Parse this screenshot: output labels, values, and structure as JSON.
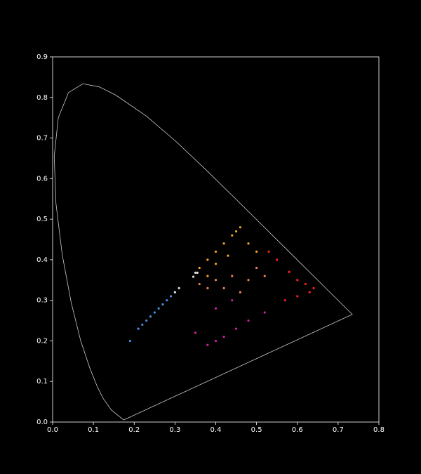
{
  "chart_data": {
    "type": "scatter",
    "xlim": [
      0,
      0.8
    ],
    "ylim": [
      0,
      0.9
    ],
    "xticks": [
      {
        "value": 0,
        "label": "0.0"
      },
      0.1,
      0.2,
      0.3,
      0.4,
      0.5,
      0.6,
      0.7,
      0.8
    ],
    "yticks": [
      {
        "value": 0,
        "label": "0.0"
      },
      0.1,
      0.2,
      0.3,
      0.4,
      0.5,
      0.6,
      0.7,
      0.8,
      0.9
    ],
    "grid": false,
    "series": [
      {
        "type": "line",
        "color": "#cccccc",
        "x": [
          0.1741,
          0.144,
          0.1241,
          0.1096,
          0.0913,
          0.0687,
          0.0454,
          0.0235,
          0.0082,
          0.0039,
          0.0139,
          0.0389,
          0.0743,
          0.1142,
          0.1547,
          0.2296,
          0.3016,
          0.3731,
          0.4441,
          0.5125,
          0.5752,
          0.627,
          0.6915,
          0.7347,
          0.1741
        ],
        "values": [
          0.005,
          0.0297,
          0.0578,
          0.0868,
          0.1327,
          0.2007,
          0.295,
          0.4127,
          0.5384,
          0.6548,
          0.7502,
          0.812,
          0.8338,
          0.8262,
          0.8059,
          0.7543,
          0.6923,
          0.6245,
          0.5547,
          0.4866,
          0.4242,
          0.3725,
          0.3083,
          0.2653,
          0.005
        ]
      },
      {
        "type": "scatter",
        "color": "#4a90d9",
        "x": [
          0.19,
          0.21,
          0.22,
          0.24,
          0.25,
          0.27,
          0.28,
          0.29,
          0.3,
          0.23,
          0.26
        ],
        "values": [
          0.2,
          0.23,
          0.24,
          0.26,
          0.27,
          0.29,
          0.3,
          0.31,
          0.32,
          0.25,
          0.28
        ]
      },
      {
        "type": "scatter",
        "color": "#f5a623",
        "x": [
          0.36,
          0.38,
          0.4,
          0.42,
          0.44,
          0.45,
          0.46,
          0.4,
          0.43,
          0.38,
          0.48,
          0.5
        ],
        "values": [
          0.38,
          0.4,
          0.42,
          0.44,
          0.46,
          0.47,
          0.48,
          0.39,
          0.41,
          0.36,
          0.44,
          0.42
        ]
      },
      {
        "type": "scatter",
        "color": "#f08060",
        "x": [
          0.36,
          0.4,
          0.44,
          0.48,
          0.42,
          0.46,
          0.5,
          0.38,
          0.52
        ],
        "values": [
          0.34,
          0.35,
          0.36,
          0.35,
          0.33,
          0.32,
          0.38,
          0.33,
          0.36
        ]
      },
      {
        "type": "scatter",
        "color": "#ff2020",
        "x": [
          0.55,
          0.58,
          0.6,
          0.62,
          0.64,
          0.63,
          0.57,
          0.6,
          0.53
        ],
        "values": [
          0.4,
          0.37,
          0.35,
          0.34,
          0.33,
          0.32,
          0.3,
          0.31,
          0.42
        ]
      },
      {
        "type": "scatter",
        "color": "#d020a0",
        "x": [
          0.38,
          0.4,
          0.42,
          0.45,
          0.48,
          0.52,
          0.4,
          0.35,
          0.44
        ],
        "values": [
          0.19,
          0.2,
          0.21,
          0.23,
          0.25,
          0.27,
          0.28,
          0.22,
          0.3
        ]
      },
      {
        "type": "scatter",
        "color": "#dddddd",
        "x": [
          0.345,
          0.35,
          0.355,
          0.31,
          0.3
        ],
        "values": [
          0.358,
          0.368,
          0.368,
          0.33,
          0.32
        ]
      }
    ]
  }
}
